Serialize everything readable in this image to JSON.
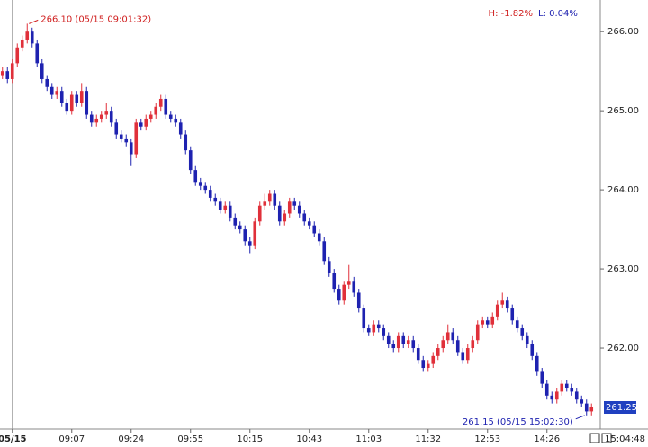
{
  "chart_data": {
    "type": "candlestick",
    "high_label": "266.10 (05/15 09:01:32)",
    "low_label": "261.15 (05/15 15:02:30)",
    "high_change": "H: -1.82%",
    "low_change": "L: 0.04%",
    "last_price": "261.25",
    "clock": "15:04:48",
    "up_color": "#e0303a",
    "down_color": "#1e22b0",
    "ylim": [
      261.0,
      266.4
    ],
    "yticks": [
      {
        "value": 262,
        "label": "262.00"
      },
      {
        "value": 263,
        "label": "263.00"
      },
      {
        "value": 264,
        "label": "264.00"
      },
      {
        "value": 265,
        "label": "265.00"
      },
      {
        "value": 266,
        "label": "266.00"
      }
    ],
    "categories": [
      null,
      null,
      "05/15",
      null,
      null,
      null,
      null,
      null,
      null,
      null,
      null,
      null,
      null,
      null,
      "09:07",
      null,
      null,
      null,
      null,
      null,
      null,
      null,
      null,
      null,
      null,
      null,
      "09:24",
      null,
      null,
      null,
      null,
      null,
      null,
      null,
      null,
      null,
      null,
      null,
      "09:55",
      null,
      null,
      null,
      null,
      null,
      null,
      null,
      null,
      null,
      null,
      null,
      "10:15",
      null,
      null,
      null,
      null,
      null,
      null,
      null,
      null,
      null,
      null,
      null,
      "10:43",
      null,
      null,
      null,
      null,
      null,
      null,
      null,
      null,
      null,
      null,
      null,
      "11:03",
      null,
      null,
      null,
      null,
      null,
      null,
      null,
      null,
      null,
      null,
      null,
      "11:32",
      null,
      null,
      null,
      null,
      null,
      null,
      null,
      null,
      null,
      null,
      null,
      "12:53",
      null,
      null,
      null,
      null,
      null,
      null,
      null,
      null,
      null,
      null,
      null,
      "14:26",
      null,
      null,
      null,
      null,
      null,
      null,
      null,
      null,
      null
    ],
    "values": [
      [
        265.45,
        265.55,
        265.4,
        265.5
      ],
      [
        265.5,
        265.55,
        265.35,
        265.4
      ],
      [
        265.4,
        265.65,
        265.35,
        265.6
      ],
      [
        265.6,
        265.85,
        265.55,
        265.8
      ],
      [
        265.8,
        265.95,
        265.75,
        265.9
      ],
      [
        265.9,
        266.1,
        265.85,
        266.0
      ],
      [
        266.0,
        266.05,
        265.8,
        265.85
      ],
      [
        265.85,
        265.9,
        265.55,
        265.6
      ],
      [
        265.6,
        265.65,
        265.35,
        265.4
      ],
      [
        265.4,
        265.45,
        265.25,
        265.3
      ],
      [
        265.3,
        265.35,
        265.15,
        265.2
      ],
      [
        265.2,
        265.3,
        265.15,
        265.25
      ],
      [
        265.25,
        265.3,
        265.05,
        265.1
      ],
      [
        265.1,
        265.15,
        264.95,
        265.0
      ],
      [
        265.0,
        265.25,
        264.95,
        265.2
      ],
      [
        265.2,
        265.25,
        265.05,
        265.1
      ],
      [
        265.1,
        265.35,
        265.05,
        265.25
      ],
      [
        265.25,
        265.3,
        264.9,
        264.95
      ],
      [
        264.95,
        265.0,
        264.8,
        264.85
      ],
      [
        264.85,
        264.95,
        264.8,
        264.9
      ],
      [
        264.9,
        265.0,
        264.85,
        264.95
      ],
      [
        264.95,
        265.1,
        264.9,
        265.0
      ],
      [
        265.0,
        265.05,
        264.8,
        264.85
      ],
      [
        264.85,
        264.9,
        264.65,
        264.7
      ],
      [
        264.7,
        264.75,
        264.6,
        264.65
      ],
      [
        264.65,
        264.7,
        264.55,
        264.6
      ],
      [
        264.6,
        264.65,
        264.3,
        264.45
      ],
      [
        264.45,
        264.9,
        264.4,
        264.85
      ],
      [
        264.85,
        264.9,
        264.75,
        264.8
      ],
      [
        264.8,
        264.95,
        264.75,
        264.9
      ],
      [
        264.9,
        265.0,
        264.85,
        264.95
      ],
      [
        264.95,
        265.1,
        264.9,
        265.05
      ],
      [
        265.05,
        265.2,
        265.0,
        265.15
      ],
      [
        265.15,
        265.2,
        264.9,
        264.95
      ],
      [
        264.95,
        265.0,
        264.85,
        264.9
      ],
      [
        264.9,
        264.95,
        264.8,
        264.85
      ],
      [
        264.85,
        264.9,
        264.65,
        264.7
      ],
      [
        264.7,
        264.75,
        264.45,
        264.5
      ],
      [
        264.5,
        264.55,
        264.2,
        264.25
      ],
      [
        264.25,
        264.3,
        264.05,
        264.1
      ],
      [
        264.1,
        264.15,
        264.0,
        264.05
      ],
      [
        264.05,
        264.1,
        263.95,
        264.0
      ],
      [
        264.0,
        264.05,
        263.85,
        263.9
      ],
      [
        263.9,
        263.95,
        263.8,
        263.85
      ],
      [
        263.85,
        263.9,
        263.7,
        263.75
      ],
      [
        263.75,
        263.85,
        263.7,
        263.8
      ],
      [
        263.8,
        263.85,
        263.6,
        263.65
      ],
      [
        263.65,
        263.7,
        263.5,
        263.55
      ],
      [
        263.55,
        263.6,
        263.45,
        263.5
      ],
      [
        263.5,
        263.55,
        263.3,
        263.35
      ],
      [
        263.35,
        263.4,
        263.2,
        263.3
      ],
      [
        263.3,
        263.65,
        263.25,
        263.6
      ],
      [
        263.6,
        263.85,
        263.55,
        263.8
      ],
      [
        263.8,
        263.95,
        263.75,
        263.85
      ],
      [
        263.85,
        264.0,
        263.8,
        263.95
      ],
      [
        263.95,
        264.0,
        263.75,
        263.8
      ],
      [
        263.8,
        263.85,
        263.55,
        263.6
      ],
      [
        263.6,
        263.75,
        263.55,
        263.7
      ],
      [
        263.7,
        263.9,
        263.65,
        263.85
      ],
      [
        263.85,
        263.9,
        263.75,
        263.8
      ],
      [
        263.8,
        263.85,
        263.65,
        263.7
      ],
      [
        263.7,
        263.75,
        263.55,
        263.6
      ],
      [
        263.6,
        263.65,
        263.5,
        263.55
      ],
      [
        263.55,
        263.6,
        263.4,
        263.45
      ],
      [
        263.45,
        263.5,
        263.3,
        263.35
      ],
      [
        263.35,
        263.4,
        263.05,
        263.1
      ],
      [
        263.1,
        263.15,
        262.9,
        262.95
      ],
      [
        262.95,
        263.0,
        262.7,
        262.75
      ],
      [
        262.75,
        262.8,
        262.55,
        262.6
      ],
      [
        262.6,
        262.85,
        262.55,
        262.8
      ],
      [
        262.8,
        263.05,
        262.75,
        262.85
      ],
      [
        262.85,
        262.9,
        262.65,
        262.7
      ],
      [
        262.7,
        262.75,
        262.45,
        262.5
      ],
      [
        262.5,
        262.55,
        262.2,
        262.25
      ],
      [
        262.25,
        262.3,
        262.15,
        262.2
      ],
      [
        262.2,
        262.35,
        262.15,
        262.3
      ],
      [
        262.3,
        262.35,
        262.2,
        262.25
      ],
      [
        262.25,
        262.3,
        262.1,
        262.15
      ],
      [
        262.15,
        262.2,
        262.0,
        262.05
      ],
      [
        262.05,
        262.1,
        261.95,
        262.0
      ],
      [
        262.0,
        262.2,
        261.95,
        262.15
      ],
      [
        262.15,
        262.2,
        262.0,
        262.05
      ],
      [
        262.05,
        262.15,
        262.0,
        262.1
      ],
      [
        262.1,
        262.15,
        261.95,
        262.0
      ],
      [
        262.0,
        262.05,
        261.8,
        261.85
      ],
      [
        261.85,
        261.9,
        261.7,
        261.75
      ],
      [
        261.75,
        261.85,
        261.7,
        261.8
      ],
      [
        261.8,
        261.95,
        261.75,
        261.9
      ],
      [
        261.9,
        262.05,
        261.85,
        262.0
      ],
      [
        262.0,
        262.15,
        261.95,
        262.1
      ],
      [
        262.1,
        262.3,
        262.05,
        262.2
      ],
      [
        262.2,
        262.25,
        262.05,
        262.1
      ],
      [
        262.1,
        262.15,
        261.9,
        261.95
      ],
      [
        261.95,
        262.0,
        261.8,
        261.85
      ],
      [
        261.85,
        262.05,
        261.8,
        262.0
      ],
      [
        262.0,
        262.15,
        261.95,
        262.1
      ],
      [
        262.1,
        262.35,
        262.05,
        262.3
      ],
      [
        262.3,
        262.4,
        262.25,
        262.35
      ],
      [
        262.35,
        262.4,
        262.25,
        262.3
      ],
      [
        262.3,
        262.45,
        262.25,
        262.4
      ],
      [
        262.4,
        262.6,
        262.35,
        262.55
      ],
      [
        262.55,
        262.7,
        262.5,
        262.6
      ],
      [
        262.6,
        262.65,
        262.45,
        262.5
      ],
      [
        262.5,
        262.55,
        262.3,
        262.35
      ],
      [
        262.35,
        262.4,
        262.2,
        262.25
      ],
      [
        262.25,
        262.3,
        262.1,
        262.15
      ],
      [
        262.15,
        262.2,
        262.0,
        262.05
      ],
      [
        262.05,
        262.1,
        261.85,
        261.9
      ],
      [
        261.9,
        261.95,
        261.65,
        261.7
      ],
      [
        261.7,
        261.75,
        261.5,
        261.55
      ],
      [
        261.55,
        261.6,
        261.35,
        261.4
      ],
      [
        261.4,
        261.45,
        261.3,
        261.35
      ],
      [
        261.35,
        261.5,
        261.3,
        261.45
      ],
      [
        261.45,
        261.6,
        261.4,
        261.55
      ],
      [
        261.55,
        261.6,
        261.45,
        261.5
      ],
      [
        261.5,
        261.55,
        261.4,
        261.45
      ],
      [
        261.45,
        261.5,
        261.3,
        261.35
      ],
      [
        261.35,
        261.4,
        261.25,
        261.3
      ],
      [
        261.3,
        261.35,
        261.15,
        261.2
      ],
      [
        261.2,
        261.3,
        261.15,
        261.25
      ]
    ]
  }
}
